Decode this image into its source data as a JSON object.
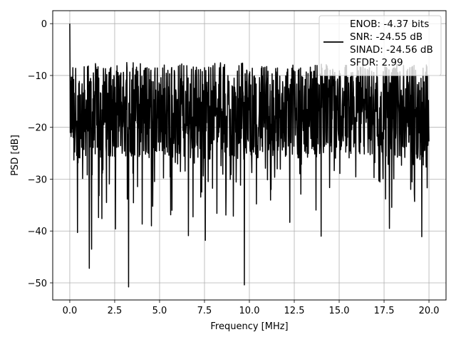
{
  "chart_data": {
    "type": "line",
    "xlabel": "Frequency [MHz]",
    "ylabel": "PSD [dB]",
    "xlim": [
      -0.95,
      20.95
    ],
    "ylim": [
      -53.3,
      2.5
    ],
    "xticks": [
      0.0,
      2.5,
      5.0,
      7.5,
      10.0,
      12.5,
      15.0,
      17.5,
      20.0
    ],
    "xtick_labels": [
      "0.0",
      "2.5",
      "5.0",
      "7.5",
      "10.0",
      "12.5",
      "15.0",
      "17.5",
      "20.0"
    ],
    "yticks": [
      0,
      -10,
      -20,
      -30,
      -40,
      -50
    ],
    "ytick_labels": [
      "0",
      "−10",
      "−20",
      "−30",
      "−40",
      "−50"
    ],
    "grid": true,
    "legend_position": "top-right",
    "legend_entries": [
      "ENOB: -4.37 bits",
      "SNR: -24.55 dB",
      "SINAD: -24.56 dB",
      "SFDR: 2.99"
    ],
    "series_color": "#000000",
    "frequency_range": [
      0.0,
      20.0
    ],
    "peak": {
      "x": 0.0,
      "y": 0.0
    },
    "upper_envelope_dB": -7.5,
    "baseline_dB": -17,
    "notable_dips": [
      {
        "x": 0.43,
        "y": -40.3
      },
      {
        "x": 1.08,
        "y": -47.2
      },
      {
        "x": 1.22,
        "y": -43.5
      },
      {
        "x": 2.55,
        "y": -39.6
      },
      {
        "x": 3.28,
        "y": -50.8
      },
      {
        "x": 4.55,
        "y": -39.0
      },
      {
        "x": 6.6,
        "y": -40.9
      },
      {
        "x": 7.55,
        "y": -41.8
      },
      {
        "x": 9.72,
        "y": -50.4
      },
      {
        "x": 14.0,
        "y": -41.0
      },
      {
        "x": 17.8,
        "y": -39.5
      },
      {
        "x": 19.6,
        "y": -41.1
      }
    ]
  }
}
